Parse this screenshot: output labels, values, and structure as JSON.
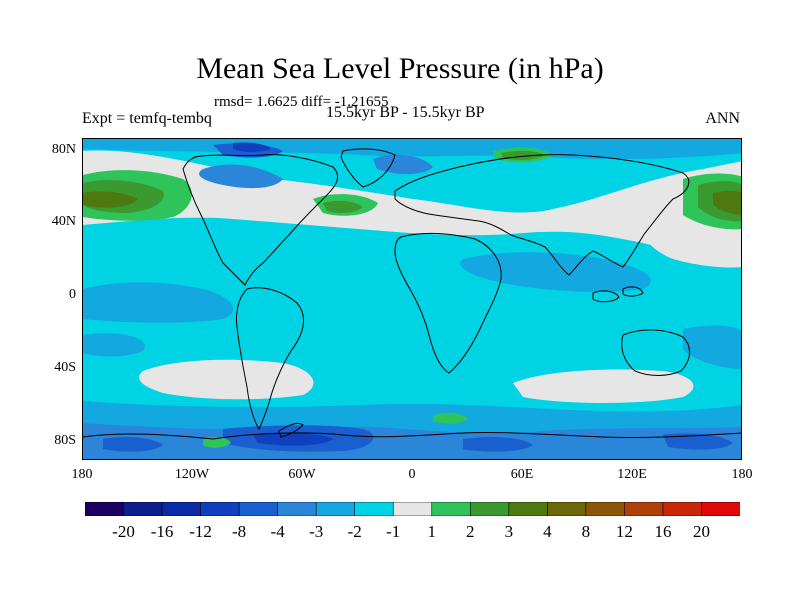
{
  "title": "Mean Sea Level Pressure (in hPa)",
  "stats": "rmsd= 1.6625 diff= -1.21655",
  "expt": "Expt = temfq-tembq",
  "period": "15.5kyr BP - 15.5kyr BP",
  "season": "ANN",
  "lat_ticks": [
    "80N",
    "40N",
    "0",
    "40S",
    "80S"
  ],
  "lon_ticks": [
    "180",
    "120W",
    "60W",
    "0",
    "60E",
    "120E",
    "180"
  ],
  "legend": {
    "colors": [
      "#1a0060",
      "#0c1f8c",
      "#0a2aa6",
      "#1040c0",
      "#1a5fd0",
      "#2b85d8",
      "#13a8df",
      "#00d3e4",
      "#e6e6e6",
      "#2fc45a",
      "#3a9a30",
      "#4d7a10",
      "#6a6808",
      "#8e5508",
      "#b0400a",
      "#c82808",
      "#e00808"
    ],
    "labels": [
      "-20",
      "-16",
      "-12",
      "-8",
      "-4",
      "-3",
      "-2",
      "-1",
      "1",
      "2",
      "3",
      "4",
      "8",
      "12",
      "16",
      "20"
    ]
  },
  "map_colors": {
    "ocean_default": "#00d3e4",
    "near_zero": "#e6e6e6",
    "minus2": "#13a8df",
    "minus3": "#2b85d8",
    "minus4": "#1a5fd0",
    "minus8": "#1040c0",
    "plus2": "#2fc45a",
    "plus3": "#3a9a30",
    "plus4": "#4d7a10",
    "plus8": "#6a6808",
    "coast": "#000000"
  }
}
